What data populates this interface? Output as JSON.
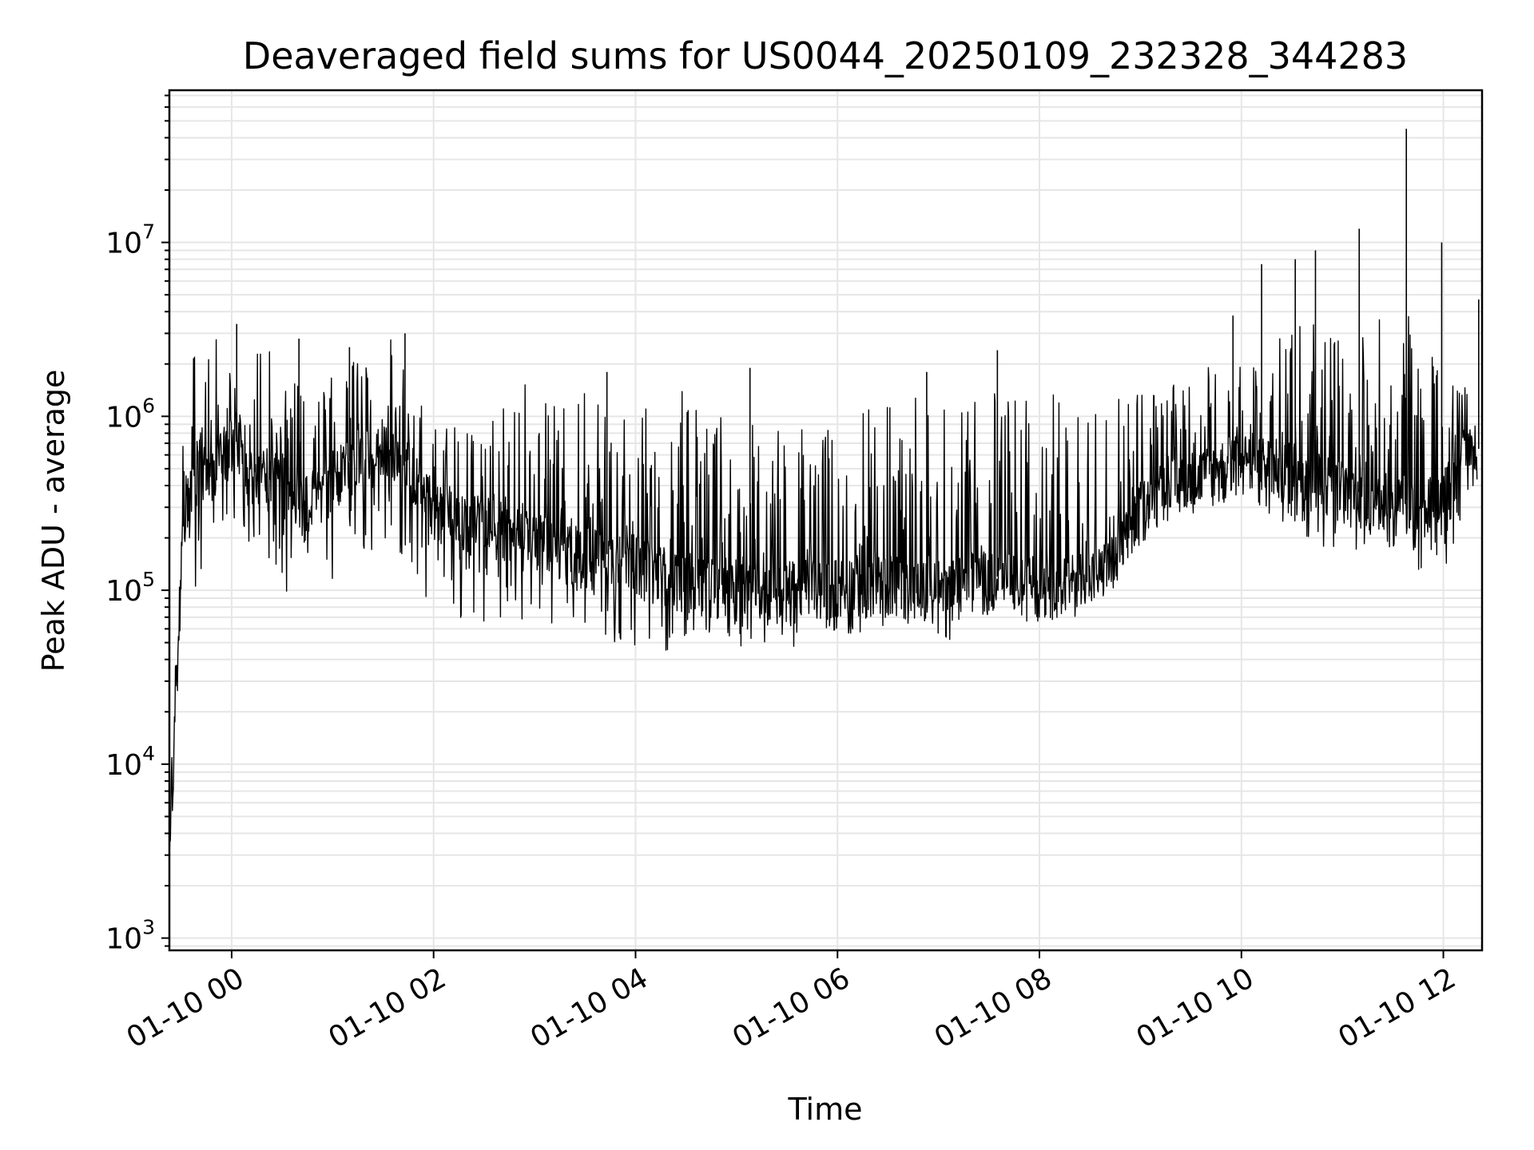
{
  "chart_data": {
    "type": "line",
    "title": "Deaveraged field sums for US0044_20250109_232328_344283",
    "xlabel": "Time",
    "ylabel": "Peak ADU - average",
    "x_scale": "time",
    "y_scale": "log",
    "xlim": [
      "01-09 23:23",
      "01-10 12:23"
    ],
    "ylim": [
      850,
      75000000
    ],
    "x_ticks": [
      "01-10 00",
      "01-10 02",
      "01-10 04",
      "01-10 06",
      "01-10 08",
      "01-10 10",
      "01-10 12"
    ],
    "y_ticks": [
      {
        "value": 1000,
        "base": "10",
        "exp": "3"
      },
      {
        "value": 10000,
        "base": "10",
        "exp": "4"
      },
      {
        "value": 100000,
        "base": "10",
        "exp": "5"
      },
      {
        "value": 1000000,
        "base": "10",
        "exp": "6"
      },
      {
        "value": 10000000,
        "base": "10",
        "exp": "7"
      }
    ],
    "grid": true,
    "color": "#000000",
    "series": [
      {
        "x": [
          "01-09 23:23",
          "01-09 23:25",
          "01-09 23:27",
          "01-09 23:29",
          "01-09 23:31",
          "01-09 23:33",
          "01-09 23:35",
          "01-09 23:38",
          "01-09 23:41",
          "01-09 23:45",
          "01-09 23:50",
          "01-09 23:55",
          "01-10 00:00",
          "01-10 00:05",
          "01-10 00:10",
          "01-10 00:15",
          "01-10 00:20",
          "01-10 00:30",
          "01-10 00:40",
          "01-10 00:50",
          "01-10 01:00",
          "01-10 01:10",
          "01-10 01:20",
          "01-10 01:30",
          "01-10 01:40",
          "01-10 01:50",
          "01-10 02:00",
          "01-10 02:15",
          "01-10 02:30",
          "01-10 02:45",
          "01-10 03:00",
          "01-10 03:15",
          "01-10 03:30",
          "01-10 03:45",
          "01-10 04:00",
          "01-10 04:15",
          "01-10 04:30",
          "01-10 04:45",
          "01-10 05:00",
          "01-10 05:15",
          "01-10 05:30",
          "01-10 05:45",
          "01-10 06:00",
          "01-10 06:15",
          "01-10 06:30",
          "01-10 06:45",
          "01-10 07:00",
          "01-10 07:10",
          "01-10 07:20",
          "01-10 07:35",
          "01-10 07:50",
          "01-10 08:00",
          "01-10 08:15",
          "01-10 08:30",
          "01-10 08:45",
          "01-10 09:00",
          "01-10 09:15",
          "01-10 09:30",
          "01-10 09:45",
          "01-10 10:00",
          "01-10 10:15",
          "01-10 10:30",
          "01-10 10:45",
          "01-10 11:00",
          "01-10 11:15",
          "01-10 11:30",
          "01-10 11:45",
          "01-10 12:00",
          "01-10 12:10",
          "01-10 12:20"
        ],
        "y": [
          3000,
          8000,
          25000,
          60000,
          250000,
          350000,
          400000,
          500000,
          600000,
          500000,
          500000,
          600000,
          800000,
          700000,
          500000,
          550000,
          500000,
          400000,
          350000,
          350000,
          450000,
          550000,
          600000,
          700000,
          600000,
          450000,
          300000,
          270000,
          250000,
          220000,
          200000,
          180000,
          170000,
          160000,
          150000,
          130000,
          120000,
          115000,
          110000,
          110000,
          105000,
          110000,
          110000,
          115000,
          115000,
          110000,
          105000,
          110000,
          120000,
          120000,
          110000,
          110000,
          115000,
          120000,
          150000,
          300000,
          400000,
          450000,
          500000,
          600000,
          550000,
          500000,
          450000,
          400000,
          350000,
          330000,
          330000,
          320000,
          700000,
          650000
        ],
        "upper": [
          4500,
          15000,
          60000,
          300000,
          800000,
          1500000,
          2200000,
          2500000,
          2300000,
          2000000,
          3300000,
          2500000,
          2000000,
          2000000,
          1500000,
          2500000,
          2800000,
          1800000,
          1500000,
          1300000,
          1700000,
          2000000,
          2500000,
          3000000,
          2600000,
          1500000,
          1000000,
          850000,
          800000,
          1500000,
          1600000,
          1300000,
          1500000,
          1000000,
          1000000,
          1500000,
          1400000,
          1000000,
          1100000,
          1000000,
          900000,
          800000,
          1000000,
          1100000,
          1300000,
          1400000,
          1500000,
          1300000,
          1400000,
          1400000,
          1500000,
          1500000,
          1300000,
          1400000,
          1500000,
          1400000,
          1500000,
          1600000,
          2500000,
          2200000,
          2000000,
          4000000,
          4000000,
          3000000,
          3000000,
          4500000,
          4000000,
          1500000,
          1800000,
          3000000
        ],
        "lower": [
          2500,
          5500,
          20000,
          40000,
          150000,
          200000,
          150000,
          100000,
          120000,
          150000,
          150000,
          200000,
          250000,
          200000,
          150000,
          150000,
          120000,
          100000,
          90000,
          80000,
          100000,
          130000,
          150000,
          180000,
          150000,
          100000,
          80000,
          70000,
          60000,
          55000,
          60000,
          55000,
          55000,
          50000,
          48000,
          45000,
          45000,
          50000,
          48000,
          47000,
          46000,
          48000,
          50000,
          55000,
          60000,
          60000,
          55000,
          50000,
          60000,
          70000,
          80000,
          80000,
          80000,
          85000,
          100000,
          200000,
          300000,
          300000,
          300000,
          300000,
          250000,
          200000,
          180000,
          170000,
          160000,
          150000,
          130000,
          120000,
          200000,
          400000
        ],
        "spikes": [
          {
            "x": "01-10 00:03",
            "y": 3400000
          },
          {
            "x": "01-10 00:40",
            "y": 2800000
          },
          {
            "x": "01-10 01:10",
            "y": 2500000
          },
          {
            "x": "01-10 01:43",
            "y": 3000000
          },
          {
            "x": "01-10 03:43",
            "y": 1800000
          },
          {
            "x": "01-10 05:08",
            "y": 1900000
          },
          {
            "x": "01-10 06:53",
            "y": 1800000
          },
          {
            "x": "01-10 07:35",
            "y": 2400000
          },
          {
            "x": "01-10 09:55",
            "y": 3800000
          },
          {
            "x": "01-10 10:12",
            "y": 7500000
          },
          {
            "x": "01-10 10:32",
            "y": 8000000
          },
          {
            "x": "01-10 10:44",
            "y": 9000000
          },
          {
            "x": "01-10 11:10",
            "y": 12000000
          },
          {
            "x": "01-10 11:38",
            "y": 45000000
          },
          {
            "x": "01-10 11:59",
            "y": 10000000
          },
          {
            "x": "01-10 12:21",
            "y": 4700000
          }
        ]
      }
    ]
  }
}
